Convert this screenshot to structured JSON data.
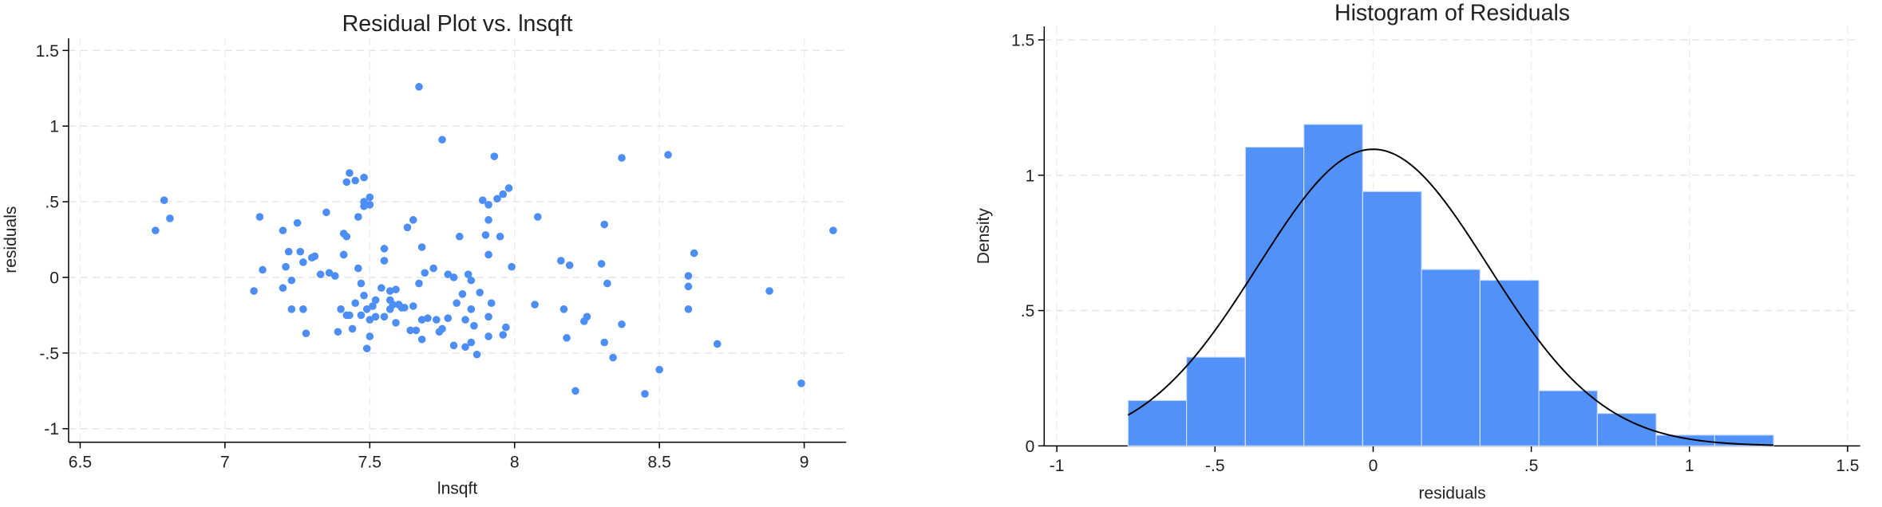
{
  "chart_data": [
    {
      "type": "scatter",
      "title": "Residual Plot vs. lnsqft",
      "x_label": "lnsqft",
      "y_label": "residuals",
      "color": "#4d8ef5",
      "grid": true,
      "xlim": [
        6.46,
        9.145
      ],
      "ylim": [
        -1.09,
        1.58
      ],
      "xticks": [
        6.5,
        7,
        7.5,
        8,
        8.5,
        9
      ],
      "yticks": [
        {
          "value": -1,
          "label": "-1"
        },
        {
          "value": -0.5,
          "label": "-.5"
        },
        0,
        {
          "value": 0.5,
          "label": ".5"
        },
        1,
        1.5
      ],
      "x": [
        6.76,
        6.79,
        6.81,
        7.1,
        7.12,
        7.13,
        7.2,
        7.21,
        7.2,
        7.22,
        7.23,
        7.23,
        7.25,
        7.26,
        7.27,
        7.27,
        7.28,
        7.3,
        7.31,
        7.33,
        7.35,
        7.36,
        7.38,
        7.39,
        7.4,
        7.41,
        7.41,
        7.42,
        7.43,
        7.42,
        7.41,
        7.42,
        7.43,
        7.44,
        7.45,
        7.45,
        7.46,
        7.46,
        7.47,
        7.47,
        7.48,
        7.48,
        7.48,
        7.48,
        7.49,
        7.49,
        7.5,
        7.5,
        7.5,
        7.5,
        7.51,
        7.52,
        7.52,
        7.54,
        7.55,
        7.55,
        7.55,
        7.57,
        7.57,
        7.57,
        7.58,
        7.59,
        7.59,
        7.6,
        7.61,
        7.62,
        7.63,
        7.64,
        7.65,
        7.65,
        7.66,
        7.67,
        7.67,
        7.68,
        7.68,
        7.68,
        7.69,
        7.7,
        7.72,
        7.73,
        7.74,
        7.75,
        7.75,
        7.77,
        7.77,
        7.79,
        7.79,
        7.8,
        7.81,
        7.82,
        7.83,
        7.83,
        7.84,
        7.85,
        7.85,
        7.85,
        7.86,
        7.87,
        7.88,
        7.89,
        7.9,
        7.91,
        7.91,
        7.91,
        7.91,
        7.91,
        7.92,
        7.93,
        7.94,
        7.95,
        7.96,
        7.96,
        7.97,
        7.98,
        7.99,
        8.07,
        8.08,
        8.16,
        8.17,
        8.18,
        8.19,
        8.21,
        8.24,
        8.25,
        8.3,
        8.31,
        8.31,
        8.32,
        8.34,
        8.37,
        8.37,
        8.45,
        8.5,
        8.53,
        8.6,
        8.6,
        8.6,
        8.62,
        8.7,
        8.88,
        8.99,
        9.1
      ],
      "values": [
        0.31,
        0.51,
        0.39,
        -0.09,
        0.4,
        0.05,
        0.31,
        0.07,
        -0.07,
        0.17,
        -0.02,
        -0.21,
        0.36,
        0.17,
        0.1,
        -0.21,
        -0.37,
        0.13,
        0.14,
        0.02,
        0.43,
        0.03,
        0.01,
        -0.36,
        -0.21,
        0.15,
        0.29,
        0.63,
        0.69,
        -0.25,
        0.15,
        0.27,
        -0.25,
        -0.34,
        0.64,
        -0.17,
        0.06,
        0.4,
        -0.04,
        -0.25,
        0.47,
        0.66,
        0.5,
        -0.12,
        -0.47,
        -0.21,
        0.48,
        -0.39,
        0.53,
        -0.28,
        -0.19,
        -0.15,
        -0.26,
        -0.07,
        0.11,
        0.19,
        -0.26,
        -0.15,
        -0.21,
        -0.09,
        -0.18,
        -0.08,
        -0.3,
        -0.18,
        -0.2,
        -0.2,
        0.33,
        -0.35,
        0.38,
        -0.19,
        -0.35,
        -0.04,
        1.26,
        0.2,
        -0.28,
        -0.41,
        0.03,
        -0.27,
        0.06,
        -0.28,
        -0.36,
        0.91,
        -0.34,
        -0.27,
        0.02,
        0.0,
        -0.45,
        -0.17,
        0.27,
        -0.11,
        -0.46,
        -0.28,
        0.02,
        -0.02,
        -0.43,
        -0.21,
        -0.32,
        -0.51,
        -0.1,
        0.51,
        0.28,
        0.38,
        -0.39,
        0.48,
        -0.26,
        0.15,
        -0.17,
        0.8,
        0.52,
        0.27,
        -0.38,
        0.55,
        -0.33,
        0.59,
        0.07,
        -0.18,
        0.4,
        0.11,
        -0.21,
        -0.4,
        0.08,
        -0.75,
        -0.29,
        -0.26,
        0.09,
        -0.43,
        0.35,
        -0.04,
        -0.53,
        -0.31,
        0.79,
        -0.77,
        -0.61,
        0.81,
        0.01,
        -0.06,
        -0.21,
        0.16,
        -0.44,
        -0.09,
        -0.7,
        0.31
      ]
    },
    {
      "type": "histogram",
      "title": "Histogram of Residuals",
      "x_label": "residuals",
      "y_label": "Density",
      "color": "#5191f8",
      "grid": true,
      "xlim": [
        -1.04,
        1.54
      ],
      "ylim": [
        0,
        1.55
      ],
      "xticks": [
        -1,
        {
          "value": -0.5,
          "label": "-.5"
        },
        0,
        {
          "value": 0.5,
          "label": ".5"
        },
        1,
        1.5
      ],
      "yticks": [
        0,
        {
          "value": 0.5,
          "label": ".5"
        },
        1,
        1.5
      ],
      "bins": [
        -0.775,
        -0.59,
        -0.404,
        -0.219,
        -0.033,
        0.153,
        0.338,
        0.524,
        0.709,
        0.895,
        1.08,
        1.266
      ],
      "values": [
        0.168,
        0.328,
        1.104,
        1.188,
        0.94,
        0.652,
        0.612,
        0.204,
        0.12,
        0.04,
        0.04
      ],
      "normal_curve": {
        "mean": 0,
        "sd": 0.364,
        "color": "#000000"
      }
    }
  ]
}
